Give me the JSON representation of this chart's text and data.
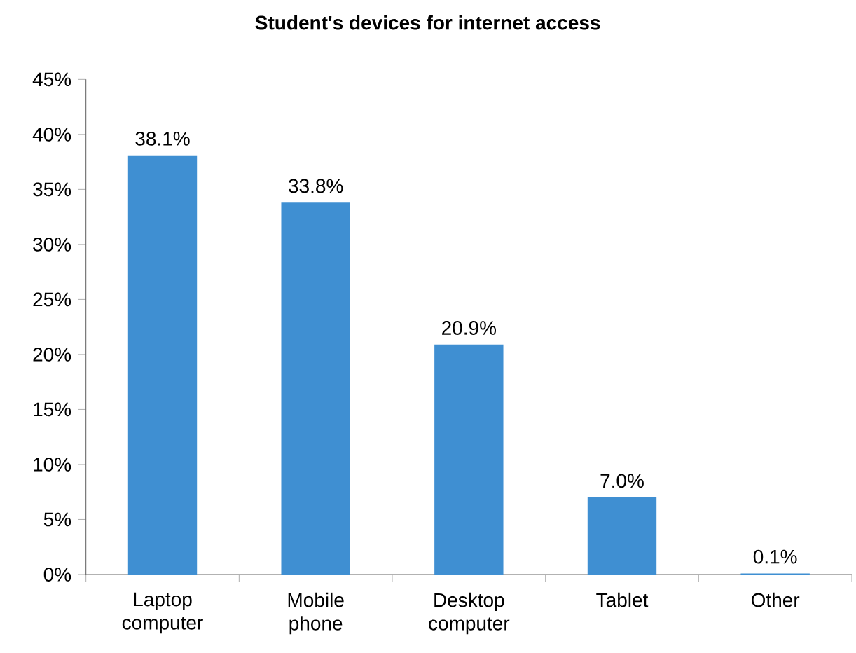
{
  "chart_data": {
    "type": "bar",
    "title": "Student's devices for internet access",
    "categories": [
      "Laptop computer",
      "Mobile phone",
      "Desktop computer",
      "Tablet",
      "Other"
    ],
    "values": [
      38.1,
      33.8,
      20.9,
      7.0,
      0.1
    ],
    "value_labels": [
      "38.1%",
      "33.8%",
      "20.9%",
      "7.0%",
      "0.1%"
    ],
    "color": "#3f8fd2",
    "ylim": [
      0,
      45
    ],
    "yticks": [
      {
        "value": 0,
        "label": "0%"
      },
      {
        "value": 5,
        "label": "5%"
      },
      {
        "value": 10,
        "label": "10%"
      },
      {
        "value": 15,
        "label": "15%"
      },
      {
        "value": 20,
        "label": "20%"
      },
      {
        "value": 25,
        "label": "25%"
      },
      {
        "value": 30,
        "label": "30%"
      },
      {
        "value": 35,
        "label": "35%"
      },
      {
        "value": 40,
        "label": "40%"
      },
      {
        "value": 45,
        "label": "45%"
      }
    ],
    "grid": false
  }
}
